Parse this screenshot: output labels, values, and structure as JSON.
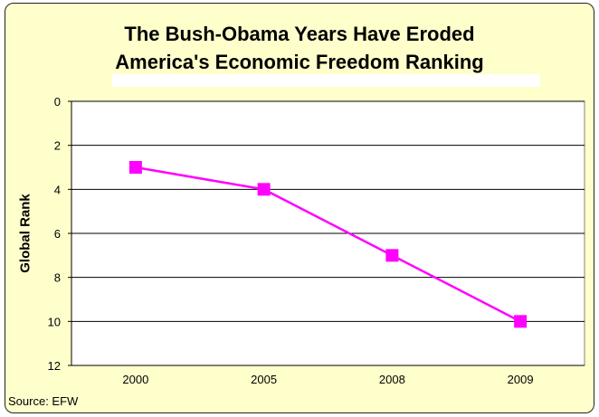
{
  "chart_data": {
    "type": "line",
    "title": "The Bush-Obama Years Have Eroded America's Economic Freedom Ranking",
    "title_lines": [
      "The Bush-Obama Years Have Eroded",
      "America's Economic Freedom Ranking"
    ],
    "xlabel": "",
    "ylabel": "Global Rank",
    "categories": [
      "2000",
      "2005",
      "2008",
      "2009"
    ],
    "series": [
      {
        "values": [
          3,
          4,
          7,
          10
        ],
        "color": "#FF00FF",
        "marker": "square"
      }
    ],
    "ylim": [
      0,
      12
    ],
    "y_reversed": true,
    "yticks": [
      0,
      2,
      4,
      6,
      8,
      10,
      12
    ],
    "grid": true,
    "background": "#FFFFCC",
    "plot_background": "#FFFFFF",
    "source": "Source: EFW"
  }
}
